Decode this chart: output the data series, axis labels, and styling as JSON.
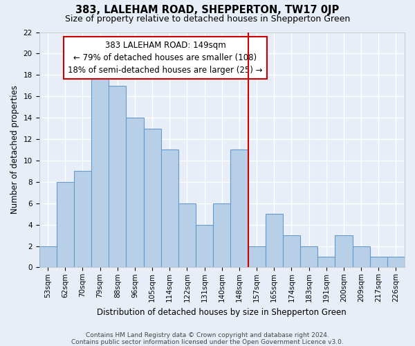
{
  "title": "383, LALEHAM ROAD, SHEPPERTON, TW17 0JP",
  "subtitle": "Size of property relative to detached houses in Shepperton Green",
  "xlabel": "Distribution of detached houses by size in Shepperton Green",
  "ylabel": "Number of detached properties",
  "categories": [
    "53sqm",
    "62sqm",
    "70sqm",
    "79sqm",
    "88sqm",
    "96sqm",
    "105sqm",
    "114sqm",
    "122sqm",
    "131sqm",
    "140sqm",
    "148sqm",
    "157sqm",
    "165sqm",
    "174sqm",
    "183sqm",
    "191sqm",
    "200sqm",
    "209sqm",
    "217sqm",
    "226sqm"
  ],
  "values": [
    2,
    8,
    9,
    18,
    17,
    14,
    13,
    11,
    6,
    4,
    6,
    11,
    2,
    5,
    3,
    2,
    1,
    3,
    2,
    1,
    1
  ],
  "bar_color": "#b8cfe8",
  "bar_edge_color": "#6699cc",
  "highlight_index": 11,
  "vline_color": "#cc0000",
  "annotation_text": "383 LALEHAM ROAD: 149sqm\n← 79% of detached houses are smaller (108)\n18% of semi-detached houses are larger (25) →",
  "annotation_box_color": "#ffffff",
  "annotation_box_edge": "#cc0000",
  "ylim": [
    0,
    22
  ],
  "yticks": [
    0,
    2,
    4,
    6,
    8,
    10,
    12,
    14,
    16,
    18,
    20,
    22
  ],
  "background_color": "#e8eef8",
  "grid_color": "#ffffff",
  "footer1": "Contains HM Land Registry data © Crown copyright and database right 2024.",
  "footer2": "Contains public sector information licensed under the Open Government Licence v3.0.",
  "title_fontsize": 10.5,
  "subtitle_fontsize": 9,
  "axis_label_fontsize": 8.5,
  "tick_fontsize": 7.5,
  "annotation_fontsize": 8.5,
  "footer_fontsize": 6.5
}
